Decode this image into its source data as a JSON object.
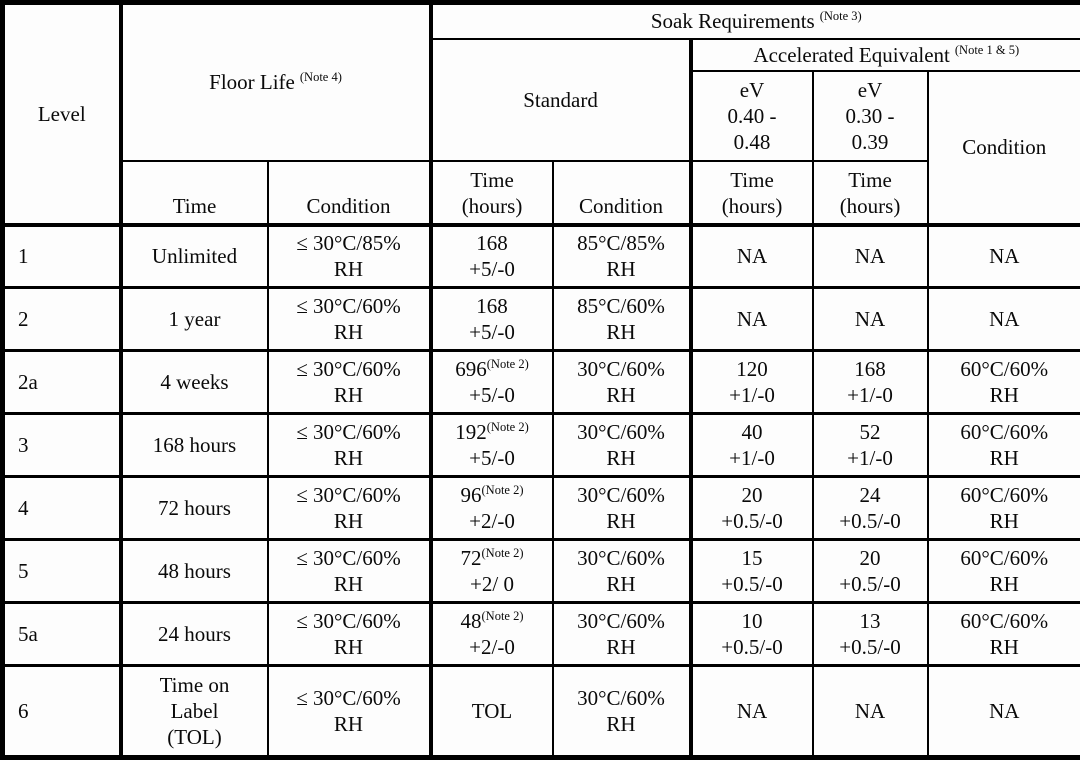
{
  "table": {
    "header": {
      "level": "Level",
      "floor_life": {
        "text": "Floor Life",
        "note": "(Note 4)"
      },
      "soak_requirements": {
        "text": "Soak Requirements",
        "note": "(Note 3)"
      },
      "standard": "Standard",
      "accelerated_equivalent": {
        "text": "Accelerated Equivalent",
        "note": "(Note 1 & 5)"
      },
      "ev_040_048": [
        "eV",
        "0.40 -",
        "0.48"
      ],
      "ev_030_039": [
        "eV",
        "0.30 -",
        "0.39"
      ],
      "accel_condition": "Condition",
      "floor_time": "Time",
      "floor_condition": "Condition",
      "std_time_hours": [
        "Time",
        "(hours)"
      ],
      "std_condition": "Condition",
      "ev40_time_hours": [
        "Time",
        "(hours)"
      ],
      "ev30_time_hours": [
        "Time",
        "(hours)"
      ]
    },
    "rows": [
      {
        "level": "1",
        "floor_time": [
          "Unlimited"
        ],
        "floor_condition": [
          "≤ 30°C/85%",
          "RH"
        ],
        "std_time": {
          "value": "168",
          "note": "",
          "tol": "+5/-0"
        },
        "std_condition": [
          "85°C/85%",
          "RH"
        ],
        "ev40_time": [
          "NA"
        ],
        "ev30_time": [
          "NA"
        ],
        "accel_condition": [
          "NA"
        ]
      },
      {
        "level": "2",
        "floor_time": [
          "1 year"
        ],
        "floor_condition": [
          "≤ 30°C/60%",
          "RH"
        ],
        "std_time": {
          "value": "168",
          "note": "",
          "tol": "+5/-0"
        },
        "std_condition": [
          "85°C/60%",
          "RH"
        ],
        "ev40_time": [
          "NA"
        ],
        "ev30_time": [
          "NA"
        ],
        "accel_condition": [
          "NA"
        ]
      },
      {
        "level": "2a",
        "floor_time": [
          "4 weeks"
        ],
        "floor_condition": [
          "≤ 30°C/60%",
          "RH"
        ],
        "std_time": {
          "value": "696",
          "note": "(Note 2)",
          "tol": "+5/-0"
        },
        "std_condition": [
          "30°C/60%",
          "RH"
        ],
        "ev40_time": [
          "120",
          "+1/-0"
        ],
        "ev30_time": [
          "168",
          "+1/-0"
        ],
        "accel_condition": [
          "60°C/60%",
          "RH"
        ]
      },
      {
        "level": "3",
        "floor_time": [
          "168 hours"
        ],
        "floor_condition": [
          "≤ 30°C/60%",
          "RH"
        ],
        "std_time": {
          "value": "192",
          "note": "(Note 2)",
          "tol": "+5/-0"
        },
        "std_condition": [
          "30°C/60%",
          "RH"
        ],
        "ev40_time": [
          "40",
          "+1/-0"
        ],
        "ev30_time": [
          "52",
          "+1/-0"
        ],
        "accel_condition": [
          "60°C/60%",
          "RH"
        ]
      },
      {
        "level": "4",
        "floor_time": [
          "72 hours"
        ],
        "floor_condition": [
          "≤ 30°C/60%",
          "RH"
        ],
        "std_time": {
          "value": "96",
          "note": "(Note 2)",
          "tol": "+2/-0"
        },
        "std_condition": [
          "30°C/60%",
          "RH"
        ],
        "ev40_time": [
          "20",
          "+0.5/-0"
        ],
        "ev30_time": [
          "24",
          "+0.5/-0"
        ],
        "accel_condition": [
          "60°C/60%",
          "RH"
        ]
      },
      {
        "level": "5",
        "floor_time": [
          "48 hours"
        ],
        "floor_condition": [
          "≤ 30°C/60%",
          "RH"
        ],
        "std_time": {
          "value": "72",
          "note": "(Note 2)",
          "tol": "+2/ 0"
        },
        "std_condition": [
          "30°C/60%",
          "RH"
        ],
        "ev40_time": [
          "15",
          "+0.5/-0"
        ],
        "ev30_time": [
          "20",
          "+0.5/-0"
        ],
        "accel_condition": [
          "60°C/60%",
          "RH"
        ]
      },
      {
        "level": "5a",
        "floor_time": [
          "24 hours"
        ],
        "floor_condition": [
          "≤ 30°C/60%",
          "RH"
        ],
        "std_time": {
          "value": "48",
          "note": "(Note 2)",
          "tol": "+2/-0"
        },
        "std_condition": [
          "30°C/60%",
          "RH"
        ],
        "ev40_time": [
          "10",
          "+0.5/-0"
        ],
        "ev30_time": [
          "13",
          "+0.5/-0"
        ],
        "accel_condition": [
          "60°C/60%",
          "RH"
        ]
      },
      {
        "level": "6",
        "floor_time": [
          "Time on",
          "Label",
          "(TOL)"
        ],
        "floor_condition": [
          "≤ 30°C/60%",
          "RH"
        ],
        "std_time": {
          "value": "TOL",
          "note": "",
          "tol": ""
        },
        "std_condition": [
          "30°C/60%",
          "RH"
        ],
        "ev40_time": [
          "NA"
        ],
        "ev30_time": [
          "NA"
        ],
        "accel_condition": [
          "NA"
        ]
      }
    ]
  }
}
